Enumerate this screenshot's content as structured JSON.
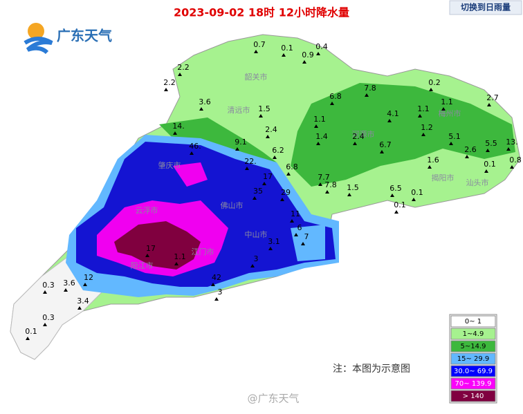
{
  "header": {
    "title": "2023-09-02 18时 12小时降水量",
    "logo": "广东天气",
    "button": "切换到日雨量"
  },
  "cities": [
    "韶关市",
    "清远市",
    "梅州市",
    "河源市",
    "揭阳市",
    "汕头市",
    "肇庆市",
    "佛山市",
    "云浮市",
    "江门市",
    "阳江市",
    "中山市"
  ],
  "stations": [
    "0.7",
    "0.1",
    "0.9",
    "0.4",
    "2.2",
    "2.2",
    "0.2",
    "2.7",
    "3.6",
    "1.5",
    "6.8",
    "7.8",
    "1.1",
    "1.1",
    "4.1",
    "1.1",
    "1.2",
    "14.",
    "2.4",
    "1.4",
    "2.4",
    "5.1",
    "9.1",
    "6.7",
    "6.2",
    "2.6",
    "5.5",
    "13.",
    "46.",
    "1.6",
    "0.1",
    "0.8",
    "22.",
    "6.8",
    "17",
    "7.7",
    "7.8",
    "1.5",
    "6.5",
    "0.1",
    "35",
    "29",
    "0.1",
    "11",
    "6",
    "3.1",
    "7",
    "3",
    "42",
    "0.3",
    "3.6",
    "12",
    "3.4",
    "0.3",
    "0.1",
    "1.1",
    "17",
    "3"
  ],
  "legend": [
    {
      "label": "0~ 1",
      "color": "#ffffff"
    },
    {
      "label": "1~4.9",
      "color": "#a6f28f"
    },
    {
      "label": "5~14.9",
      "color": "#3db83d"
    },
    {
      "label": "15~ 29.9",
      "color": "#62b8ff"
    },
    {
      "label": "30.0~ 69.9",
      "color": "#0000fe"
    },
    {
      "label": "70~ 139.9",
      "color": "#fa00fa"
    },
    {
      "label": "> 140",
      "color": "#800040"
    }
  ],
  "note": "注：本图为示意图",
  "watermark": "@广东天气"
}
